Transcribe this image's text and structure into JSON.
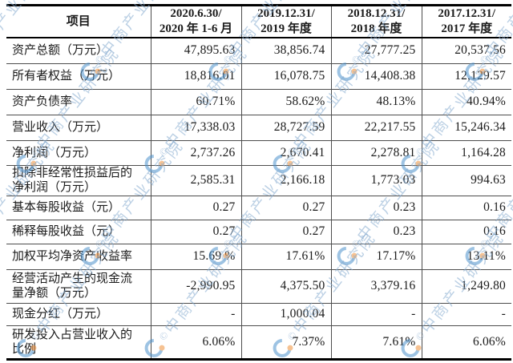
{
  "table": {
    "header": {
      "item_label": "项目",
      "periods": [
        {
          "line1": "2020.6.30/",
          "line2": "2020 年 1-6 月"
        },
        {
          "line1": "2019.12.31/",
          "line2": "2019 年度"
        },
        {
          "line1": "2018.12.31/",
          "line2": "2018 年度"
        },
        {
          "line1": "2017.12.31/",
          "line2": "2017 年度"
        }
      ]
    },
    "rows": [
      {
        "label": [
          "资产总额（万元）"
        ],
        "values": [
          "47,895.63",
          "38,856.74",
          "27,777.25",
          "20,537.56"
        ]
      },
      {
        "label": [
          "所有者权益（万元）"
        ],
        "values": [
          "18,816.01",
          "16,078.75",
          "14,408.38",
          "12,129.57"
        ]
      },
      {
        "label": [
          "资产负债率"
        ],
        "values": [
          "60.71%",
          "58.62%",
          "48.13%",
          "40.94%"
        ]
      },
      {
        "label": [
          "营业收入（万元）"
        ],
        "values": [
          "17,338.03",
          "28,727.59",
          "22,217.55",
          "15,246.34"
        ]
      },
      {
        "label": [
          "净利润（万元）"
        ],
        "values": [
          "2,737.26",
          "2,670.41",
          "2,278.81",
          "1,164.28"
        ]
      },
      {
        "label": [
          "扣除非经常性损益后的",
          "净利润（万元）"
        ],
        "values": [
          "2,585.31",
          "2,166.18",
          "1,773.03",
          "994.63"
        ]
      },
      {
        "label": [
          "基本每股收益（元）"
        ],
        "values": [
          "0.27",
          "0.27",
          "0.23",
          "0.16"
        ]
      },
      {
        "label": [
          "稀释每股收益（元）"
        ],
        "values": [
          "0.27",
          "0.27",
          "0.23",
          "0.16"
        ]
      },
      {
        "label": [
          "加权平均净资产收益率"
        ],
        "values": [
          "15.69 %",
          "17.61%",
          "17.17%",
          "13.11%"
        ]
      },
      {
        "label": [
          "经营活动产生的现金流",
          "量净额（万元）"
        ],
        "values": [
          "-2,990.95",
          "4,375.50",
          "3,379.16",
          "1,249.80"
        ]
      },
      {
        "label": [
          "现金分红（万元）"
        ],
        "values": [
          "-",
          "1,000.04",
          "-",
          "-"
        ]
      },
      {
        "label": [
          "研发投入占营业收入的",
          "比例"
        ],
        "values": [
          "6.06%",
          "7.37%",
          "7.61%",
          "6.06%"
        ]
      }
    ]
  },
  "watermark": {
    "copyright_symbol": "©",
    "text": "中商产业研究院",
    "text_color": "#85aacf",
    "logo_blue": "#4e93cd",
    "logo_orange": "#f0913a"
  }
}
